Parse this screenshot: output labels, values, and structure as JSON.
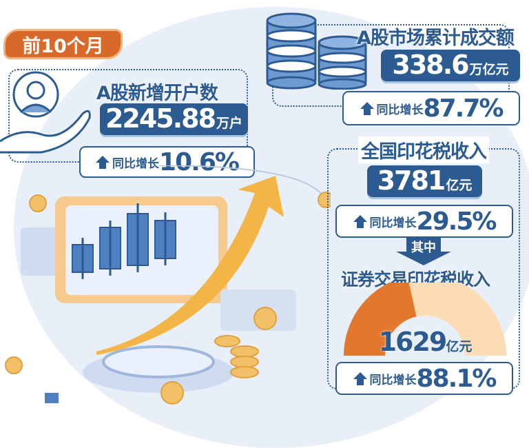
{
  "period_badge": "前10个月",
  "accounts": {
    "title": "A股新增开户数",
    "value": "2245.88",
    "unit": "万户",
    "growth_label": "同比增长",
    "growth": "10.6%"
  },
  "turnover": {
    "title": "A股市场累计成交额",
    "value": "338.6",
    "unit": "万亿元",
    "growth_label": "同比增长",
    "growth": "87.7%"
  },
  "stamp_tax": {
    "title": "全国印花税收入",
    "value": "3781",
    "unit": "亿元",
    "growth_label": "同比增长",
    "growth": "29.5%"
  },
  "of_which": "其中",
  "securities_tax": {
    "title": "证券交易印花税收入",
    "value": "1629",
    "unit": "亿元",
    "growth_label": "同比增长",
    "growth": "88.1%",
    "share_of_total": 0.431
  },
  "colors": {
    "primary": "#2c5b92",
    "accent": "#d8692a",
    "light_orange": "#fbdcb4"
  }
}
